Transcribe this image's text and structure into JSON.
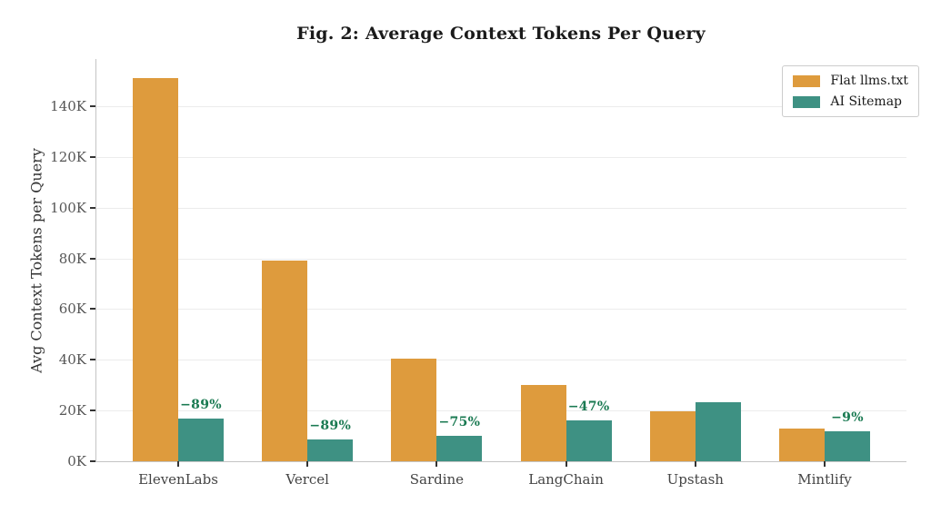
{
  "chart_data": {
    "type": "bar",
    "title": "Fig. 2: Average Context Tokens Per Query",
    "xlabel": "",
    "ylabel": "Avg Context Tokens per Query",
    "categories": [
      "ElevenLabs",
      "Vercel",
      "Sardine",
      "LangChain",
      "Upstash",
      "Mintlify"
    ],
    "series": [
      {
        "name": "Flat llms.txt",
        "color": "#DE9B3D",
        "values": [
          151000,
          79000,
          40500,
          30000,
          19600,
          13000
        ]
      },
      {
        "name": "AI Sitemap",
        "color": "#3E9183",
        "values": [
          16800,
          8500,
          10100,
          16000,
          23400,
          11800
        ]
      }
    ],
    "annotations": [
      {
        "category": "ElevenLabs",
        "label": "−89%"
      },
      {
        "category": "Vercel",
        "label": "−89%"
      },
      {
        "category": "Sardine",
        "label": "−75%"
      },
      {
        "category": "LangChain",
        "label": "−47%"
      },
      {
        "category": "Mintlify",
        "label": "−9%"
      }
    ],
    "annotation_color": "#1A7A52",
    "ylim": [
      0,
      158600
    ],
    "yticks": [
      0,
      20000,
      40000,
      60000,
      80000,
      100000,
      120000,
      140000
    ],
    "ytick_labels": [
      "0K",
      "20K",
      "40K",
      "60K",
      "80K",
      "100K",
      "120K",
      "140K"
    ],
    "grid": "horizontal",
    "legend_position": "upper-right"
  }
}
